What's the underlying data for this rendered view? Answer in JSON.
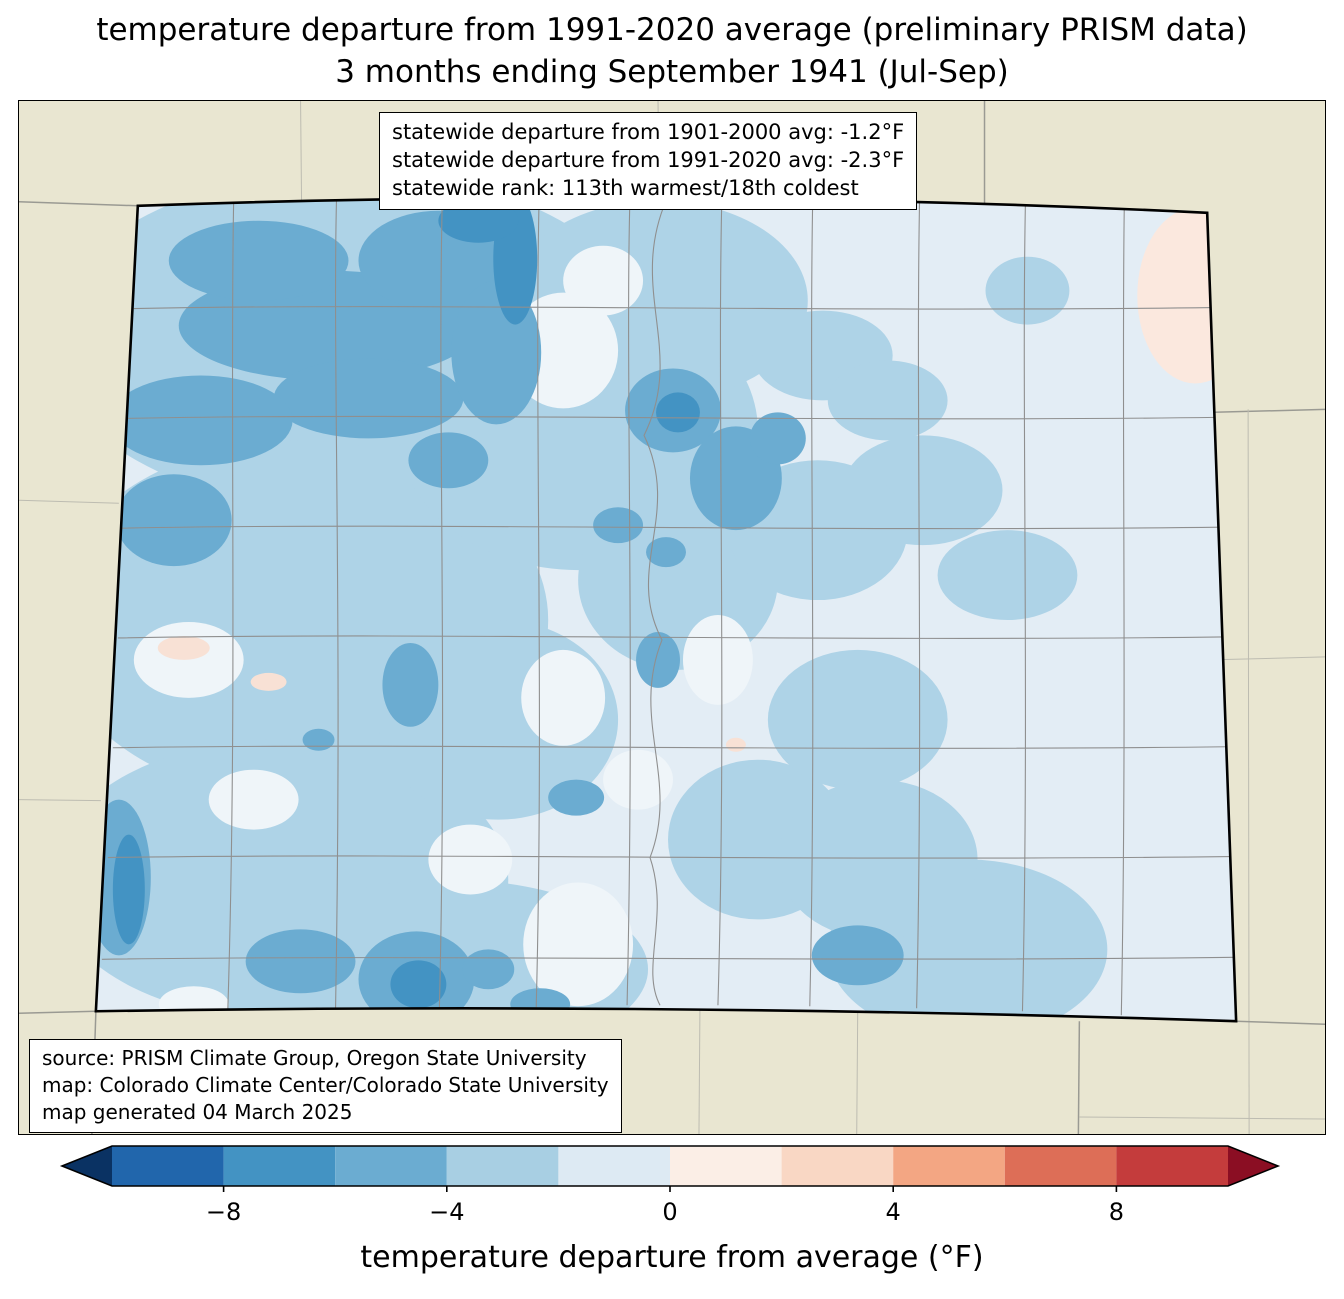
{
  "title": {
    "line1": "temperature departure from 1991-2020 average (preliminary PRISM data)",
    "line2": "3 months ending September 1941 (Jul-Sep)"
  },
  "stats_box": {
    "lines": [
      "statewide departure from 1901-2000 avg: -1.2°F",
      "statewide departure from 1991-2020 avg: -2.3°F",
      "statewide rank: 113th warmest/18th coldest"
    ]
  },
  "source_box": {
    "lines": [
      "source: PRISM Climate Group, Oregon State University",
      "map: Colorado Climate Center/Colorado State University",
      "map generated 04 March 2025"
    ]
  },
  "colorbar": {
    "label": "temperature departure from average (°F)",
    "range": [
      -10,
      10
    ],
    "ticks": [
      {
        "value": -8,
        "label": "−8"
      },
      {
        "value": -4,
        "label": "−4"
      },
      {
        "value": 0,
        "label": "0"
      },
      {
        "value": 4,
        "label": "4"
      },
      {
        "value": 8,
        "label": "8"
      }
    ],
    "segments": [
      {
        "from": -10,
        "to": -8,
        "color": "#2166ac"
      },
      {
        "from": -8,
        "to": -6,
        "color": "#4393c3"
      },
      {
        "from": -6,
        "to": -4,
        "color": "#6bacd1"
      },
      {
        "from": -4,
        "to": -2,
        "color": "#a8cfe3"
      },
      {
        "from": -2,
        "to": 0,
        "color": "#ddeaf3"
      },
      {
        "from": 0,
        "to": 2,
        "color": "#fbeee6"
      },
      {
        "from": 2,
        "to": 4,
        "color": "#f9d7c4"
      },
      {
        "from": 4,
        "to": 6,
        "color": "#f3a683"
      },
      {
        "from": 6,
        "to": 8,
        "color": "#dd6e57"
      },
      {
        "from": 8,
        "to": 10,
        "color": "#c43c3c"
      }
    ],
    "arrow_left_color": "#0a3263",
    "arrow_right_color": "#8b0e23"
  },
  "map": {
    "colors": {
      "map_bg": "#e9e6d1",
      "state_base": "#e3edf5",
      "blue_light": "#aed3e7",
      "blue_mid": "#6bacd1",
      "blue_deep": "#4393c3",
      "pale_pocket": "#eff5f9",
      "pink_spot": "#f8e1d5",
      "pink_corner": "#fbe8de",
      "county_line": "#8f8f8f",
      "neighbor_line": "#9a9a93",
      "neighbor_county_line": "#bdbcb1",
      "state_border": "#000000",
      "frame_border": "#000000"
    }
  }
}
